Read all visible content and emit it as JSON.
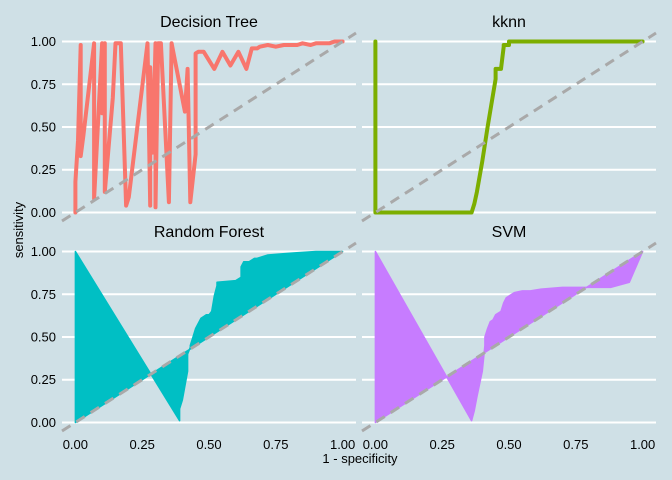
{
  "chart_data": {
    "type": "line",
    "layout": "facet-grid-2x2",
    "xlabel": "1 - specificity",
    "ylabel": "sensitivity",
    "xlim": [
      0,
      1
    ],
    "ylim": [
      0,
      1
    ],
    "x_ticks": [
      "0.00",
      "0.25",
      "0.50",
      "0.75",
      "1.00"
    ],
    "y_ticks": [
      "0.00",
      "0.25",
      "0.50",
      "0.75",
      "1.00"
    ],
    "grid": "horizontal-major",
    "reference_line": {
      "style": "dashed",
      "color": "#a9a9a9",
      "from": [
        0,
        0
      ],
      "to": [
        1,
        1
      ]
    },
    "panels": [
      {
        "title": "Decision Tree",
        "render": "line",
        "color": "#f8766d",
        "x": [
          0.0,
          0.0,
          0.01,
          0.02,
          0.02,
          0.03,
          0.07,
          0.07,
          0.1,
          0.1,
          0.11,
          0.11,
          0.14,
          0.15,
          0.17,
          0.19,
          0.2,
          0.27,
          0.28,
          0.28,
          0.29,
          0.3,
          0.3,
          0.31,
          0.32,
          0.35,
          0.36,
          0.41,
          0.42,
          0.43,
          0.45,
          0.45,
          0.46,
          0.47,
          0.48,
          0.52,
          0.55,
          0.58,
          0.61,
          0.64,
          0.66,
          0.68,
          0.69,
          0.72,
          0.75,
          0.78,
          0.8,
          0.83,
          0.85,
          0.88,
          0.9,
          0.92,
          0.95,
          0.97,
          1.0
        ],
        "y": [
          0.0,
          0.18,
          0.42,
          0.98,
          0.33,
          0.45,
          0.99,
          0.08,
          0.99,
          0.58,
          0.99,
          0.12,
          0.67,
          0.99,
          0.99,
          0.04,
          0.09,
          0.99,
          0.04,
          0.85,
          0.35,
          0.99,
          0.03,
          0.99,
          0.99,
          0.06,
          0.99,
          0.59,
          0.84,
          0.06,
          0.34,
          0.93,
          0.94,
          0.94,
          0.94,
          0.84,
          0.94,
          0.86,
          0.94,
          0.84,
          0.96,
          0.96,
          0.97,
          0.98,
          0.97,
          0.98,
          0.98,
          0.98,
          0.99,
          0.98,
          0.99,
          0.99,
          0.99,
          1.0,
          1.0
        ]
      },
      {
        "title": "kknn",
        "render": "line",
        "color": "#7cae00",
        "x": [
          0.0,
          0.0,
          0.0,
          0.2,
          0.36,
          0.37,
          0.38,
          0.4,
          0.42,
          0.45,
          0.45,
          0.47,
          0.48,
          0.48,
          0.49,
          0.5,
          0.5,
          0.6,
          0.8,
          1.0
        ],
        "y": [
          1.0,
          0.5,
          0.0,
          0.0,
          0.0,
          0.05,
          0.12,
          0.3,
          0.5,
          0.78,
          0.84,
          0.84,
          0.97,
          0.98,
          0.98,
          0.98,
          1.0,
          1.0,
          1.0,
          1.0
        ]
      },
      {
        "title": "Random Forest",
        "render": "area",
        "color": "#00bfc4",
        "x": [
          0.0,
          0.0,
          0.39,
          0.39,
          0.4,
          0.42,
          0.42,
          0.43,
          0.43,
          0.44,
          0.45,
          0.46,
          0.47,
          0.48,
          0.49,
          0.5,
          0.51,
          0.52,
          0.53,
          0.53,
          0.6,
          0.62,
          0.62,
          0.63,
          0.65,
          0.67,
          0.68,
          0.72,
          0.8,
          0.9,
          1.0
        ],
        "y": [
          0.0,
          1.0,
          0.01,
          0.08,
          0.13,
          0.3,
          0.4,
          0.44,
          0.45,
          0.5,
          0.55,
          0.58,
          0.61,
          0.62,
          0.63,
          0.63,
          0.65,
          0.74,
          0.8,
          0.82,
          0.83,
          0.85,
          0.91,
          0.94,
          0.94,
          0.96,
          0.96,
          0.98,
          0.99,
          1.0,
          1.0
        ]
      },
      {
        "title": "SVM",
        "render": "area",
        "color": "#c77cff",
        "x": [
          0.0,
          0.0,
          0.36,
          0.37,
          0.38,
          0.4,
          0.41,
          0.41,
          0.42,
          0.43,
          0.44,
          0.45,
          0.47,
          0.48,
          0.49,
          0.5,
          0.52,
          0.55,
          0.58,
          0.62,
          0.7,
          0.8,
          0.88,
          0.95,
          1.0
        ],
        "y": [
          0.0,
          1.0,
          0.01,
          0.07,
          0.15,
          0.3,
          0.45,
          0.5,
          0.55,
          0.59,
          0.6,
          0.63,
          0.65,
          0.7,
          0.73,
          0.74,
          0.76,
          0.77,
          0.77,
          0.78,
          0.79,
          0.79,
          0.79,
          0.82,
          1.0
        ]
      }
    ]
  }
}
